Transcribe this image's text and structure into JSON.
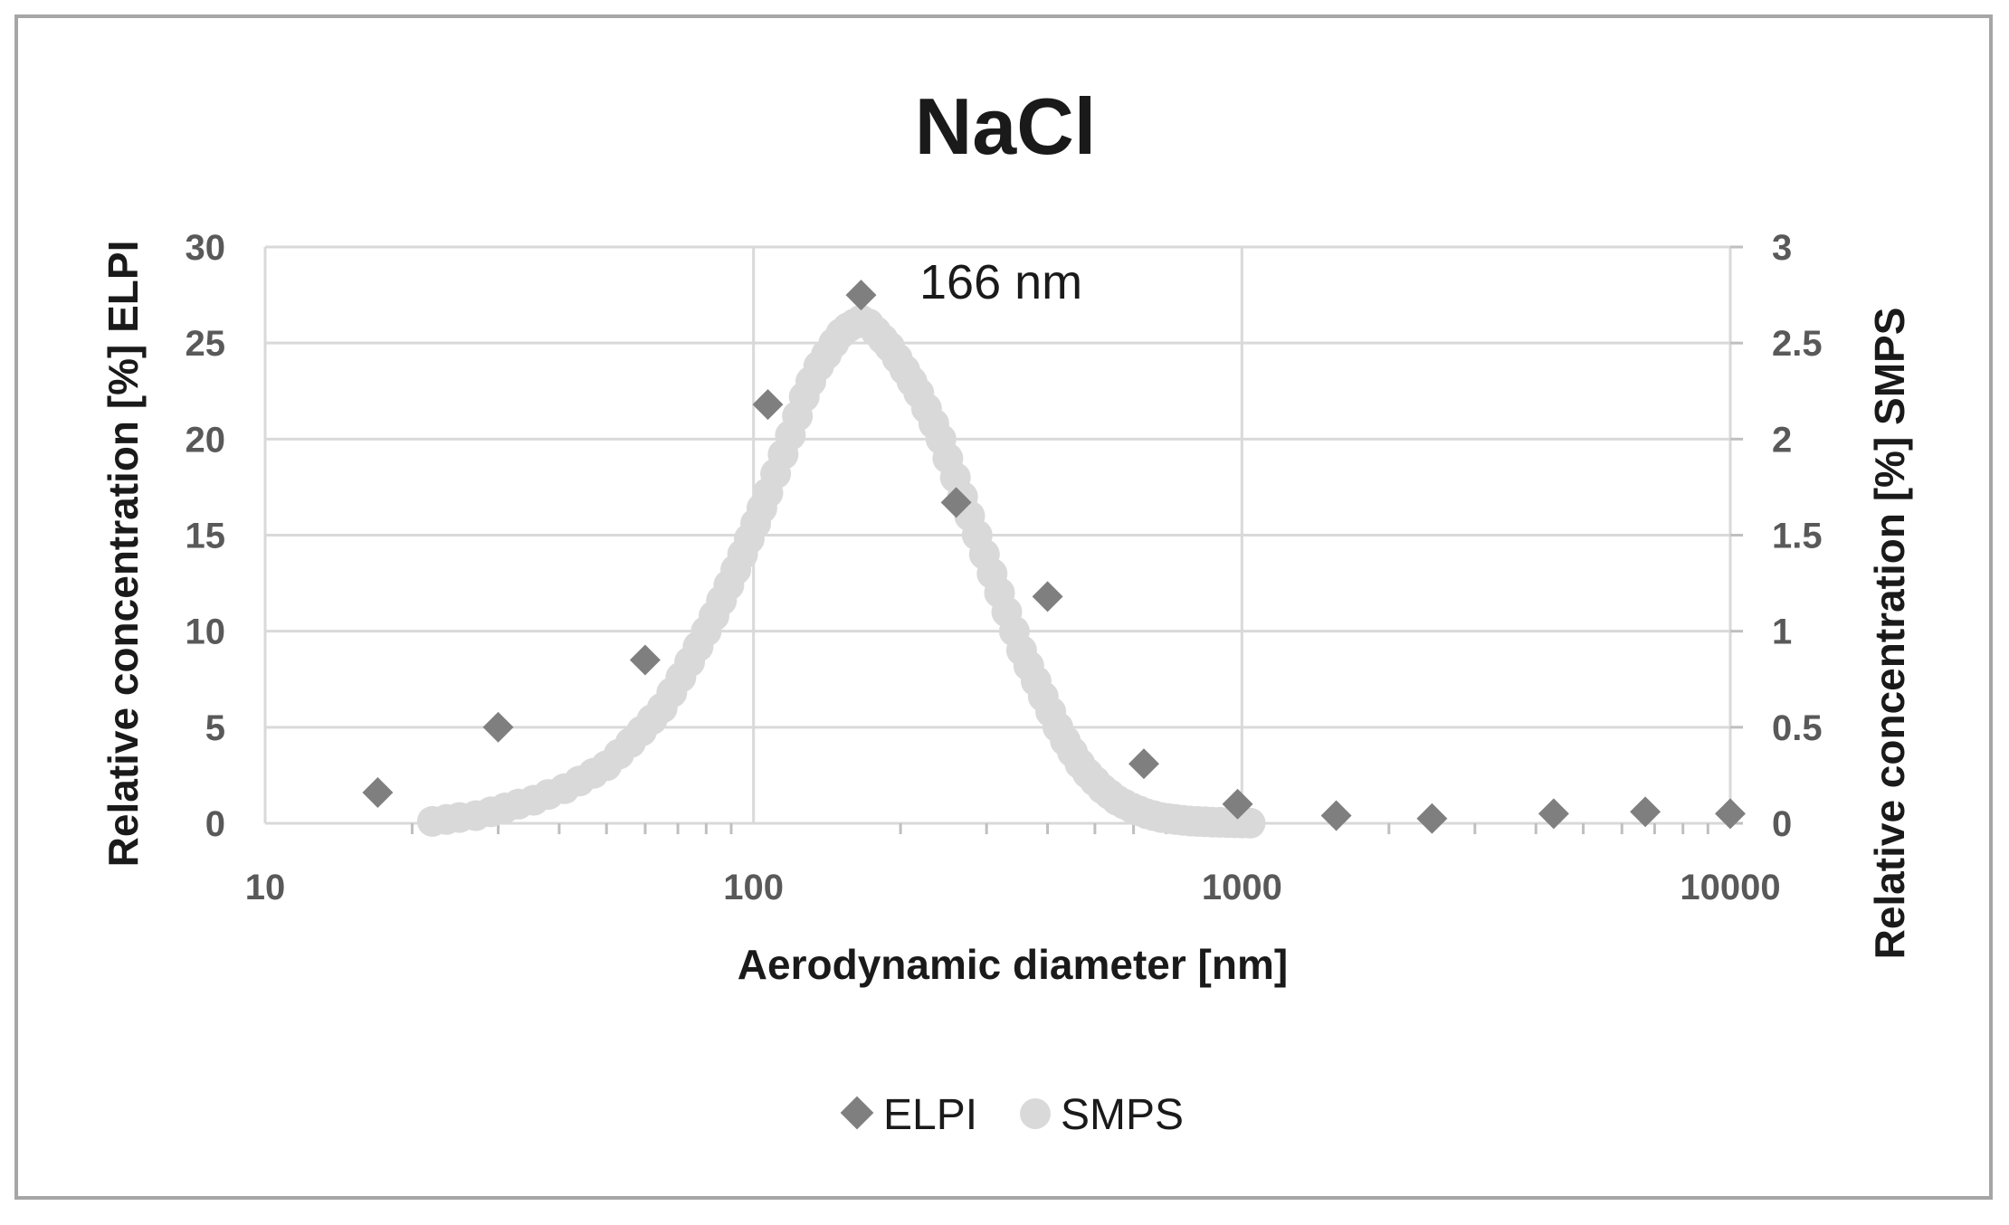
{
  "chart_data": {
    "type": "scatter",
    "title": "NaCl",
    "xlabel": "Aerodynamic diameter [nm]",
    "ylabel": "Relative concentration [%] ELPI",
    "y2label": "Relative concentration [%] SMPS",
    "xscale": "log",
    "xlim": [
      10,
      10000
    ],
    "ylim": [
      0,
      30
    ],
    "y2lim": [
      0,
      3
    ],
    "xticks": [
      "10",
      "100",
      "1000",
      "10000"
    ],
    "yticks": [
      "0",
      "5",
      "10",
      "15",
      "20",
      "25",
      "30"
    ],
    "y2ticks": [
      "0",
      "0.5",
      "1",
      "1.5",
      "2",
      "2.5",
      "3"
    ],
    "grid": true,
    "legend_position": "bottom",
    "annotation": {
      "text": "166 nm",
      "x": 166
    },
    "colors": {
      "ELPI": "#7f7f7f",
      "SMPS": "#d9d9d9",
      "grid": "#d9d9d9"
    },
    "series": [
      {
        "name": "ELPI",
        "axis": "left",
        "marker": "diamond",
        "x": [
          17,
          30,
          60,
          107,
          166,
          260,
          400,
          630,
          980,
          1560,
          2450,
          4350,
          6700,
          10000
        ],
        "y": [
          1.6,
          5.0,
          8.5,
          21.8,
          27.5,
          16.7,
          11.8,
          3.1,
          1.0,
          0.4,
          0.25,
          0.5,
          0.6,
          0.5
        ]
      },
      {
        "name": "SMPS",
        "axis": "right",
        "marker": "circle",
        "x": [
          22,
          23.5,
          25,
          27,
          29,
          31,
          33,
          35.5,
          38,
          41,
          44,
          47,
          50,
          53,
          56,
          59,
          62,
          65,
          68,
          71,
          74,
          77,
          80,
          83,
          86,
          89,
          92,
          95,
          98,
          101,
          104,
          107,
          111,
          115,
          119,
          123,
          127,
          131,
          136,
          141,
          146,
          151,
          156,
          161,
          166,
          172,
          178,
          184,
          190,
          197,
          204,
          211,
          218,
          226,
          234,
          242,
          250,
          259,
          268,
          277,
          287,
          297,
          308,
          319,
          330,
          342,
          354,
          366,
          379,
          392,
          406,
          420,
          435,
          450,
          466,
          483,
          500,
          518,
          536,
          555,
          575,
          595,
          616,
          638,
          660,
          683,
          707,
          732,
          758,
          785,
          812,
          841,
          870,
          901,
          933,
          966,
          1000,
          1040
        ],
        "y": [
          0.01,
          0.02,
          0.03,
          0.04,
          0.06,
          0.08,
          0.1,
          0.12,
          0.15,
          0.18,
          0.22,
          0.26,
          0.3,
          0.36,
          0.42,
          0.48,
          0.54,
          0.6,
          0.68,
          0.76,
          0.84,
          0.92,
          1.0,
          1.08,
          1.16,
          1.24,
          1.32,
          1.4,
          1.48,
          1.56,
          1.64,
          1.72,
          1.82,
          1.92,
          2.02,
          2.12,
          2.22,
          2.3,
          2.38,
          2.44,
          2.5,
          2.55,
          2.58,
          2.6,
          2.62,
          2.6,
          2.56,
          2.52,
          2.48,
          2.42,
          2.36,
          2.3,
          2.24,
          2.16,
          2.08,
          2.0,
          1.9,
          1.8,
          1.7,
          1.6,
          1.5,
          1.4,
          1.3,
          1.2,
          1.1,
          1.0,
          0.9,
          0.82,
          0.74,
          0.66,
          0.58,
          0.5,
          0.43,
          0.37,
          0.31,
          0.26,
          0.22,
          0.18,
          0.15,
          0.12,
          0.1,
          0.08,
          0.065,
          0.05,
          0.04,
          0.03,
          0.025,
          0.02,
          0.015,
          0.012,
          0.01,
          0.008,
          0.006,
          0.005,
          0.004,
          0.003,
          0.002,
          0.001
        ]
      }
    ]
  }
}
